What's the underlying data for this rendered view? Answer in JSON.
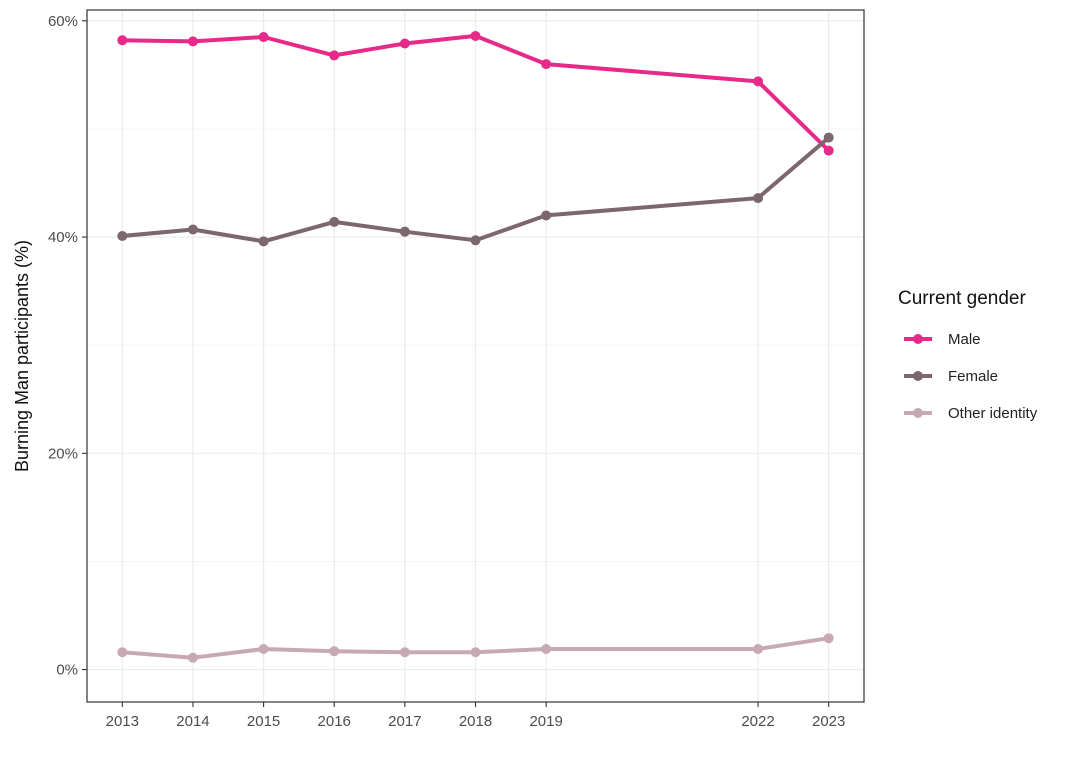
{
  "chart_data": {
    "type": "line",
    "title": "",
    "xlabel": "",
    "ylabel": "Burning Man participants (%)",
    "x": [
      2013,
      2014,
      2015,
      2016,
      2017,
      2018,
      2019,
      2022,
      2023
    ],
    "x_tick_labels": [
      "2013",
      "2014",
      "2015",
      "2016",
      "2017",
      "2018",
      "2019",
      "2022",
      "2023"
    ],
    "xlim": [
      2012.5,
      2023.5
    ],
    "ylim": [
      -3,
      61
    ],
    "y_ticks": [
      0,
      20,
      40,
      60
    ],
    "y_tick_labels": [
      "0%",
      "20%",
      "40%",
      "60%"
    ],
    "grid": true,
    "legend_title": "Current gender",
    "legend_position": "right",
    "series": [
      {
        "name": "Male",
        "color": "#e7298a",
        "values": [
          58.2,
          58.1,
          58.5,
          56.8,
          57.9,
          58.6,
          56.0,
          54.4,
          48.0
        ]
      },
      {
        "name": "Female",
        "color": "#7b676d",
        "values": [
          40.1,
          40.7,
          39.6,
          41.4,
          40.5,
          39.7,
          42.0,
          43.6,
          49.2
        ]
      },
      {
        "name": "Other identity",
        "color": "#c7a9b3",
        "values": [
          1.6,
          1.1,
          1.9,
          1.7,
          1.6,
          1.6,
          1.9,
          1.9,
          2.9
        ]
      }
    ]
  }
}
